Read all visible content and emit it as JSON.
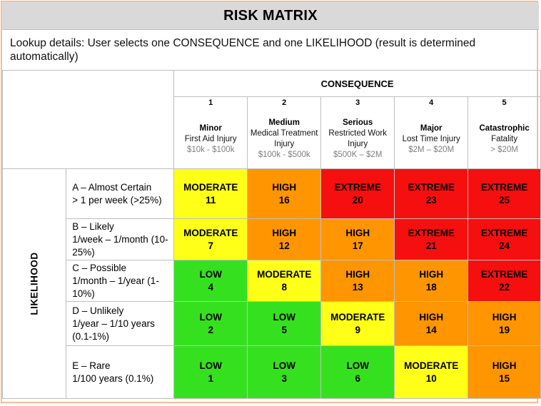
{
  "title": "RISK MATRIX",
  "lookup_text": "Lookup details: User selects one CONSEQUENCE and one LIKELIHOOD (result is determined automatically)",
  "consequence_label": "CONSEQUENCE",
  "likelihood_label": "LIKELIHOOD",
  "consequences": [
    {
      "num": "1",
      "name": "Minor",
      "desc": "First Aid Injury",
      "value": "$10k - $100k"
    },
    {
      "num": "2",
      "name": "Medium",
      "desc": "Medical Treatment Injury",
      "value": "$100k - $500k"
    },
    {
      "num": "3",
      "name": "Serious",
      "desc": "Restricted Work Injury",
      "value": "$500K – $2M"
    },
    {
      "num": "4",
      "name": "Major",
      "desc": "Lost Time Injury",
      "value": "$2M – $20M"
    },
    {
      "num": "5",
      "name": "Catastrophic",
      "desc": "Fatality",
      "value": "> $20M"
    }
  ],
  "likelihoods": [
    {
      "name": "A – Almost Certain",
      "freq": "> 1 per week (>25%)",
      "cells": [
        {
          "level": "MODERATE",
          "score": "11"
        },
        {
          "level": "HIGH",
          "score": "16"
        },
        {
          "level": "EXTREME",
          "score": "20"
        },
        {
          "level": "EXTREME",
          "score": "23"
        },
        {
          "level": "EXTREME",
          "score": "25"
        }
      ]
    },
    {
      "name": "B – Likely",
      "freq": "1/week – 1/month (10-25%)",
      "cells": [
        {
          "level": "MODERATE",
          "score": "7"
        },
        {
          "level": "HIGH",
          "score": "12"
        },
        {
          "level": "HIGH",
          "score": "17"
        },
        {
          "level": "EXTREME",
          "score": "21"
        },
        {
          "level": "EXTREME",
          "score": "24"
        }
      ]
    },
    {
      "name": "C – Possible",
      "freq": "1/month – 1/year (1-10%)",
      "cells": [
        {
          "level": "LOW",
          "score": "4"
        },
        {
          "level": "MODERATE",
          "score": "8"
        },
        {
          "level": "HIGH",
          "score": "13"
        },
        {
          "level": "HIGH",
          "score": "18"
        },
        {
          "level": "EXTREME",
          "score": "22"
        }
      ]
    },
    {
      "name": "D – Unlikely",
      "freq": "1/year – 1/10 years (0.1-1%)",
      "cells": [
        {
          "level": "LOW",
          "score": "2"
        },
        {
          "level": "LOW",
          "score": "5"
        },
        {
          "level": "MODERATE",
          "score": "9"
        },
        {
          "level": "HIGH",
          "score": "14"
        },
        {
          "level": "HIGH",
          "score": "19"
        }
      ]
    },
    {
      "name": "E – Rare",
      "freq": " 1/100 years (0.1%)",
      "cells": [
        {
          "level": "LOW",
          "score": "1"
        },
        {
          "level": "LOW",
          "score": "3"
        },
        {
          "level": "LOW",
          "score": "6"
        },
        {
          "level": "MODERATE",
          "score": "10"
        },
        {
          "level": "HIGH",
          "score": "15"
        }
      ]
    }
  ],
  "level_colors": {
    "LOW": "#35e11e",
    "MODERATE": "#ffff17",
    "HIGH": "#ff9500",
    "EXTREME": "#f60f0f"
  }
}
